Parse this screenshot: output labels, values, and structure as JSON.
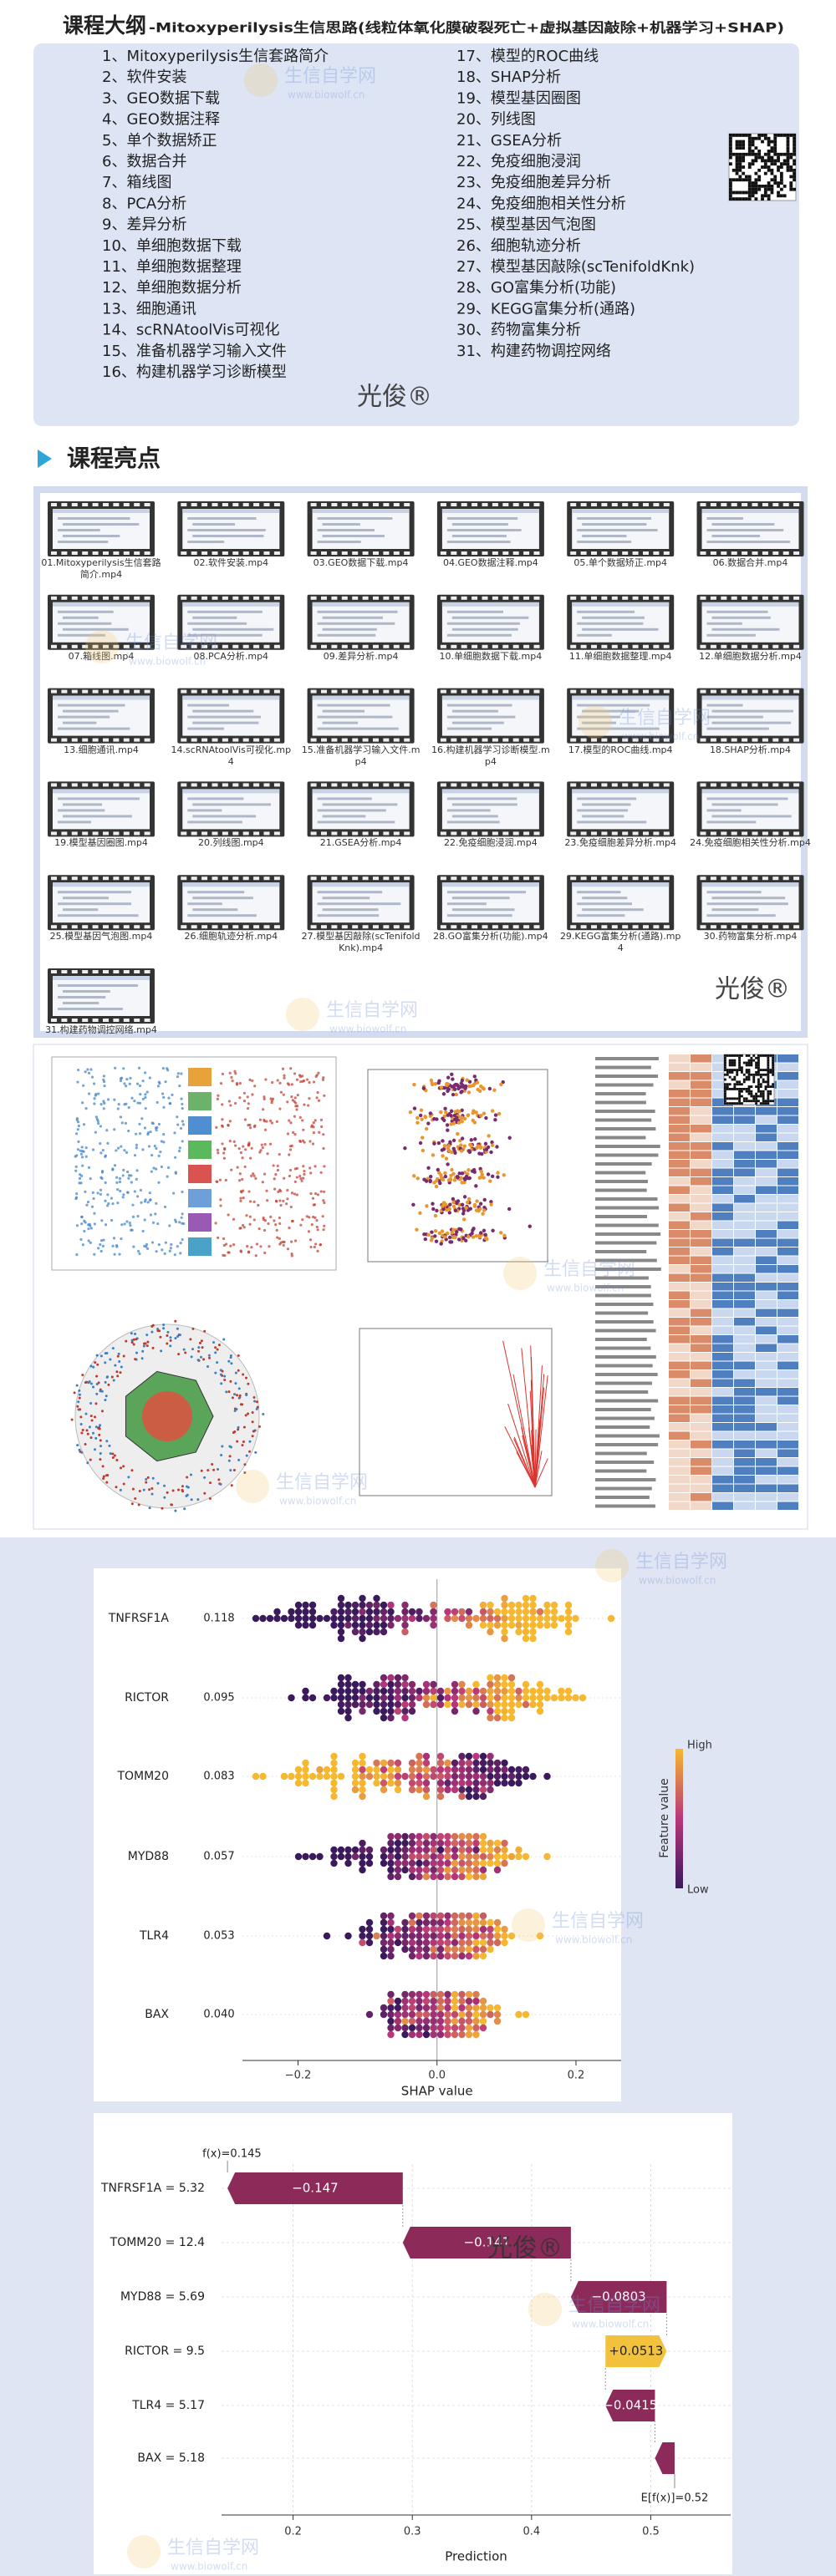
{
  "header": {
    "title": "课程大纲",
    "subtitle": "-Mitoxyperilysis生信思路(线粒体氧化膜破裂死亡+虚拟基因敲除+机器学习+SHAP)"
  },
  "outline": {
    "items": [
      "1、Mitoxyperilysis生信套路简介",
      "2、软件安装",
      "3、GEO数据下载",
      "4、GEO数据注释",
      "5、单个数据矫正",
      "6、数据合并",
      "7、箱线图",
      "8、PCA分析",
      "9、差异分析",
      "10、单细胞数据下载",
      "11、单细胞数据整理",
      "12、单细胞数据分析",
      "13、细胞通讯",
      "14、scRNAtoolVis可视化",
      "15、准备机器学习输入文件",
      "16、构建机器学习诊断模型",
      "17、模型的ROC曲线",
      "18、SHAP分析",
      "19、模型基因圈图",
      "20、列线图",
      "21、GSEA分析",
      "22、免疫细胞浸润",
      "23、免疫细胞差异分析",
      "24、免疫细胞相关性分析",
      "25、模型基因气泡图",
      "26、细胞轨迹分析",
      "27、模型基因敲除(scTenifoldKnk)",
      "28、GO富集分析(功能)",
      "29、KEGG富集分析(通路)",
      "30、药物富集分析",
      "31、构建药物调控网络"
    ]
  },
  "brand": "光俊®",
  "watermark": {
    "name": "生信自学网",
    "site": "www.biowolf.cn"
  },
  "highlights": {
    "title": "课程亮点",
    "videos": [
      "01.Mitoxyperilysis生信套路简介.mp4",
      "02.软件安装.mp4",
      "03.GEO数据下载.mp4",
      "04.GEO数据注释.mp4",
      "05.单个数据矫正.mp4",
      "06.数据合并.mp4",
      "07.箱线图.mp4",
      "08.PCA分析.mp4",
      "09.差异分析.mp4",
      "10.单细胞数据下载.mp4",
      "11.单细胞数据整理.mp4",
      "12.单细胞数据分析.mp4",
      "13.细胞通讯.mp4",
      "14.scRNAtoolVis可视化.mp4",
      "15.准备机器学习输入文件.mp4",
      "16.构建机器学习诊断模型.mp4",
      "17.模型的ROC曲线.mp4",
      "18.SHAP分析.mp4",
      "19.模型基因圈图.mp4",
      "20.列线图.mp4",
      "21.GSEA分析.mp4",
      "22.免疫细胞浸润.mp4",
      "23.免疫细胞差异分析.mp4",
      "24.免疫细胞相关性分析.mp4",
      "25.模型基因气泡图.mp4",
      "26.细胞轨迹分析.mp4",
      "27.模型基因敲除(scTenifoldKnk).mp4",
      "28.GO富集分析(功能).mp4",
      "29.KEGG富集分析(通路).mp4",
      "30.药物富集分析.mp4",
      "31.构建药物调控网络.mp4"
    ]
  },
  "shap_summary": {
    "features": [
      "TNFRSF1A",
      "RICTOR",
      "TOMM20",
      "MYD88",
      "TLR4",
      "BAX"
    ],
    "importance": [
      "0.118",
      "0.095",
      "0.083",
      "0.057",
      "0.053",
      "0.040"
    ],
    "xlim": [
      -0.28,
      0.265
    ],
    "xticks": [
      {
        "value": -0.2,
        "label": "−0.2"
      },
      {
        "value": 0,
        "label": "0.0"
      },
      0.2
    ],
    "xlabel": "SHAP value",
    "colorbar": {
      "title": "Feature value",
      "high": "High",
      "low": "Low"
    }
  },
  "waterfall": {
    "type": "waterfall",
    "features": [
      "TNFRSF1A = 5.32",
      "TOMM20 = 12.4",
      "MYD88 = 5.69",
      "RICTOR = 9.5",
      "TLR4 = 5.17",
      "BAX = 5.18"
    ],
    "values": [
      -0.147,
      -0.141,
      -0.0803,
      0.0513,
      -0.0415,
      -0.0165
    ],
    "value_labels": [
      "−0.147",
      "−0.141",
      "−0.0803",
      "+0.0513",
      "−0.0415",
      null
    ],
    "fx": 0.145,
    "fx_label": "f(x)=0.145",
    "base": 0.52,
    "base_label": "E[f(x)]=0.52",
    "xlim": [
      0.14,
      0.567
    ],
    "xticks": [
      0.2,
      0.3,
      0.4,
      0.5
    ],
    "xlabel": "Prediction",
    "colors": {
      "negative": "#8c2a5a",
      "positive": "#f2c23c"
    }
  }
}
